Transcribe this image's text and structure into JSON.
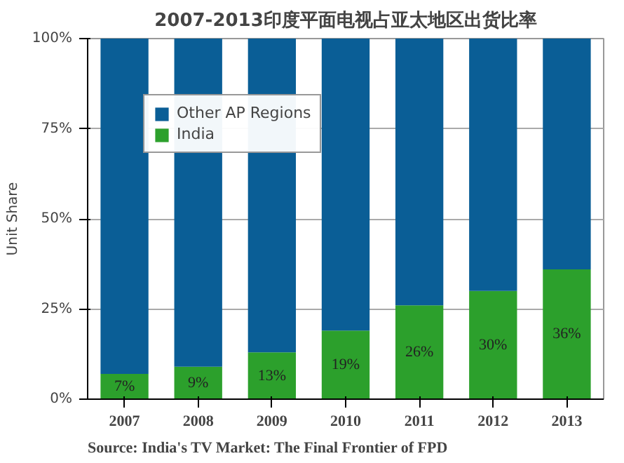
{
  "chart_data": {
    "type": "bar",
    "title": "2007-2013印度平面电视占亚太地区出货比率",
    "ylabel": "Unit Share",
    "annotations": [
      "Source: India's TV Market: The Final Frontier of FPD"
    ],
    "categories": [
      "2007",
      "2008",
      "2009",
      "2010",
      "2011",
      "2012",
      "2013"
    ],
    "stacked": true,
    "series": [
      {
        "name": "India",
        "color": "#2ca02c",
        "values": [
          7,
          9,
          13,
          19,
          26,
          30,
          36
        ],
        "value_labels": [
          "7%",
          "9%",
          "13%",
          "19%",
          "26%",
          "30%",
          "36%"
        ]
      },
      {
        "name": "Other AP Regions",
        "color": "#0a5e96",
        "values": [
          93,
          91,
          87,
          81,
          74,
          70,
          64
        ]
      }
    ],
    "ylim": [
      0,
      100
    ],
    "yticks": [
      {
        "value": 0,
        "label": "0%"
      },
      {
        "value": 25,
        "label": "25%"
      },
      {
        "value": 50,
        "label": "50%"
      },
      {
        "value": 75,
        "label": "75%"
      },
      {
        "value": 100,
        "label": "100%"
      }
    ],
    "grid": "y",
    "legend": "top left"
  }
}
